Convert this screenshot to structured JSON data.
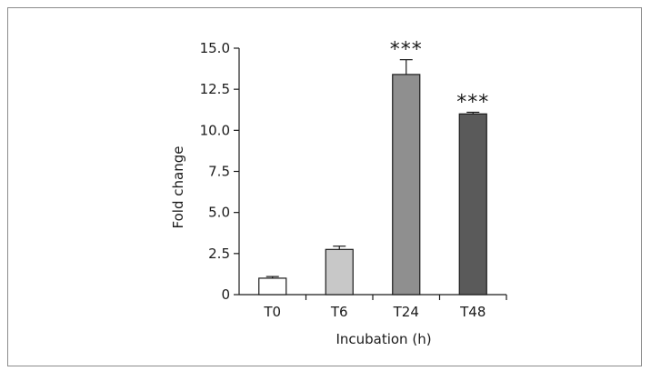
{
  "chart_data": {
    "type": "bar",
    "title": "",
    "xlabel": "Incubation (h)",
    "ylabel": "Fold change",
    "ylim": [
      0,
      15
    ],
    "yticks": [
      "0",
      "2.5",
      "5.0",
      "7.5",
      "10.0",
      "12.5",
      "15.0"
    ],
    "ytick_values": [
      0,
      2.5,
      5.0,
      7.5,
      10.0,
      12.5,
      15.0
    ],
    "categories": [
      "T0",
      "T6",
      "T24",
      "T48"
    ],
    "values": [
      1.0,
      2.75,
      13.4,
      11.0
    ],
    "errors": [
      0.1,
      0.2,
      0.9,
      0.1
    ],
    "annotations": [
      "",
      "",
      "***",
      "***"
    ],
    "colors": [
      "#ffffff",
      "#c8c8c8",
      "#8f8f8f",
      "#5a5a5a"
    ],
    "edge_color": "#1a1a1a",
    "grid": false,
    "legend": "none"
  }
}
